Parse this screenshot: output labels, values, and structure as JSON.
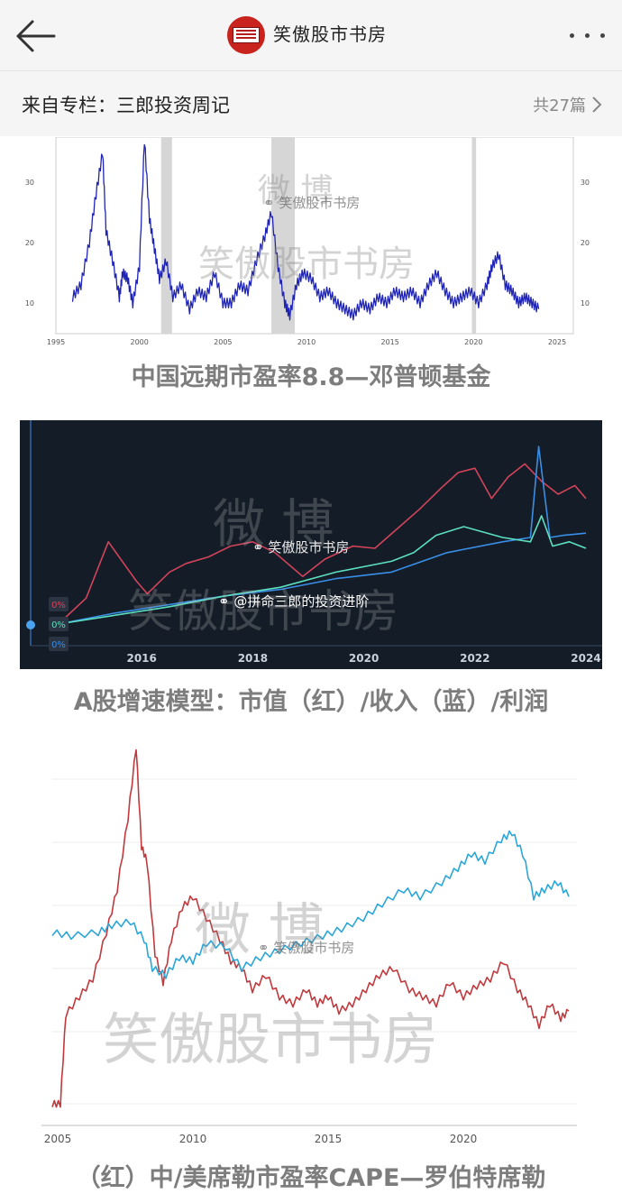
{
  "header": {
    "account_name": "笑傲股市书房",
    "back_icon": "arrow-left-icon",
    "more_icon": "more-dots-icon"
  },
  "column": {
    "from_label": "来自专栏：三郎投资周记",
    "count_label": "共27篇"
  },
  "watermark": {
    "weibo": "微 博",
    "brand": "笑傲股市书房",
    "handle": "@拼命三郎的投资进阶"
  },
  "figures": [
    {
      "caption": "中国远期市盈率8.8—邓普顿基金"
    },
    {
      "caption": "A股增速模型：市值（红）/收入（蓝）/利润"
    },
    {
      "caption": "（红）中/美席勒市盈率CAPE—罗伯特席勒"
    }
  ],
  "chart_data": [
    {
      "type": "line",
      "title": "",
      "x_ticks": [
        "1995",
        "2000",
        "2005",
        "2010",
        "2015",
        "2020",
        "2025"
      ],
      "y_ticks": [
        "10",
        "20",
        "30"
      ],
      "ylim": [
        5,
        37
      ],
      "series": [
        {
          "color": "#1f24b5",
          "x": [
            1996.0,
            1996.5,
            1997.0,
            1997.4,
            1997.8,
            1998.0,
            1998.4,
            1998.8,
            1999.0,
            1999.3,
            1999.6,
            2000.0,
            2000.3,
            2000.6,
            2000.9,
            2001.2,
            2001.6,
            2002.0,
            2002.5,
            2003.0,
            2003.5,
            2004.0,
            2004.5,
            2005.0,
            2005.5,
            2006.0,
            2006.5,
            2007.0,
            2007.5,
            2007.9,
            2008.3,
            2008.7,
            2009.0,
            2009.4,
            2009.8,
            2010.3,
            2010.8,
            2011.3,
            2011.8,
            2012.3,
            2012.8,
            2013.3,
            2013.8,
            2014.3,
            2014.8,
            2015.3,
            2015.8,
            2016.3,
            2016.8,
            2017.3,
            2017.8,
            2018.3,
            2018.8,
            2019.3,
            2019.8,
            2020.3,
            2020.8,
            2021.1,
            2021.5,
            2021.9,
            2022.3,
            2022.7,
            2023.1,
            2023.5,
            2023.9
          ],
          "y": [
            11,
            13,
            20,
            28,
            35,
            22,
            17,
            11,
            15,
            14,
            10,
            16,
            37,
            24,
            19,
            14,
            17,
            11,
            13,
            9,
            12,
            11,
            15,
            10,
            10,
            13,
            12,
            17,
            21,
            25,
            16,
            10,
            8,
            13,
            15,
            14,
            11,
            12,
            10,
            9,
            8,
            10,
            9,
            11,
            10,
            12,
            11,
            12,
            10,
            13,
            15,
            12,
            10,
            11,
            12,
            10,
            13,
            16,
            18,
            13,
            12,
            10,
            11,
            10,
            9
          ]
        }
      ]
    },
    {
      "type": "line",
      "title": "",
      "x_ticks": [
        "2016",
        "2018",
        "2020",
        "2022",
        "2024"
      ],
      "ylim": [
        0,
        100
      ],
      "legend_badges": [
        "0%",
        "0%",
        "0%"
      ],
      "series": [
        {
          "color": "#d3445a",
          "x": [
            2014.5,
            2015.0,
            2015.4,
            2015.9,
            2016.1,
            2016.5,
            2016.8,
            2017.2,
            2017.6,
            2018.0,
            2018.4,
            2018.9,
            2019.3,
            2019.8,
            2020.2,
            2020.6,
            2021.0,
            2021.4,
            2021.7,
            2022.0,
            2022.3,
            2022.6,
            2022.9,
            2023.2,
            2023.5,
            2023.8,
            2024.0
          ],
          "y": [
            0,
            12,
            38,
            20,
            14,
            24,
            28,
            31,
            36,
            38,
            33,
            22,
            30,
            36,
            35,
            44,
            53,
            63,
            70,
            72,
            58,
            68,
            74,
            66,
            60,
            64,
            58
          ]
        },
        {
          "color": "#3a8ee6",
          "x": [
            2014.5,
            2015.5,
            2016.5,
            2017.5,
            2018.5,
            2019.5,
            2020.5,
            2021.5,
            2022.5,
            2023.0,
            2023.15,
            2023.35,
            2023.6,
            2024.0
          ],
          "y": [
            0,
            5,
            9,
            13,
            16,
            21,
            24,
            33,
            38,
            40,
            82,
            40,
            41,
            42
          ]
        },
        {
          "color": "#5de0c0",
          "x": [
            2014.5,
            2015.5,
            2016.5,
            2017.5,
            2018.5,
            2019.5,
            2020.5,
            2020.9,
            2021.3,
            2021.8,
            2022.5,
            2023.0,
            2023.2,
            2023.4,
            2023.7,
            2024.0
          ],
          "y": [
            0,
            4,
            8,
            13,
            17,
            24,
            29,
            33,
            41,
            45,
            40,
            38,
            50,
            36,
            38,
            35
          ]
        }
      ]
    },
    {
      "type": "line",
      "title": "",
      "x_ticks": [
        "2005",
        "2010",
        "2015",
        "2020"
      ],
      "ylim": [
        0,
        100
      ],
      "series": [
        {
          "color": "#c0393d",
          "x": [
            2004.8,
            2005.1,
            2005.3,
            2005.8,
            2006.3,
            2006.8,
            2007.2,
            2007.6,
            2007.9,
            2008.1,
            2008.3,
            2008.6,
            2008.9,
            2009.2,
            2009.6,
            2010.0,
            2010.5,
            2011.0,
            2011.4,
            2011.8,
            2012.2,
            2012.7,
            2013.2,
            2013.7,
            2014.2,
            2014.6,
            2015.0,
            2015.4,
            2015.9,
            2016.4,
            2016.9,
            2017.4,
            2018.0,
            2018.5,
            2019.0,
            2019.5,
            2020.0,
            2020.5,
            2021.0,
            2021.5,
            2022.0,
            2022.4,
            2022.8,
            2023.2,
            2023.6,
            2023.9
          ],
          "y": [
            0,
            0,
            25,
            30,
            35,
            48,
            60,
            80,
            100,
            72,
            68,
            42,
            34,
            46,
            55,
            58,
            52,
            46,
            40,
            38,
            32,
            36,
            30,
            28,
            32,
            28,
            30,
            26,
            28,
            32,
            36,
            38,
            32,
            30,
            28,
            34,
            30,
            33,
            35,
            40,
            32,
            28,
            22,
            28,
            24,
            26
          ]
        },
        {
          "color": "#2aa6d8",
          "x": [
            2004.8,
            2005.5,
            2006.5,
            2007.0,
            2007.7,
            2008.2,
            2008.5,
            2009.0,
            2009.5,
            2010.0,
            2010.5,
            2011.2,
            2011.8,
            2012.5,
            2013.2,
            2014.0,
            2014.8,
            2015.5,
            2016.3,
            2017.0,
            2017.8,
            2018.4,
            2019.2,
            2019.8,
            2020.3,
            2020.8,
            2021.4,
            2021.8,
            2022.2,
            2022.6,
            2023.0,
            2023.5,
            2023.9
          ],
          "y": [
            48,
            47,
            48,
            50,
            51,
            46,
            38,
            36,
            41,
            40,
            45,
            44,
            38,
            41,
            43,
            45,
            47,
            49,
            52,
            56,
            60,
            58,
            62,
            66,
            70,
            68,
            74,
            76,
            70,
            58,
            60,
            62,
            58
          ]
        }
      ]
    }
  ]
}
